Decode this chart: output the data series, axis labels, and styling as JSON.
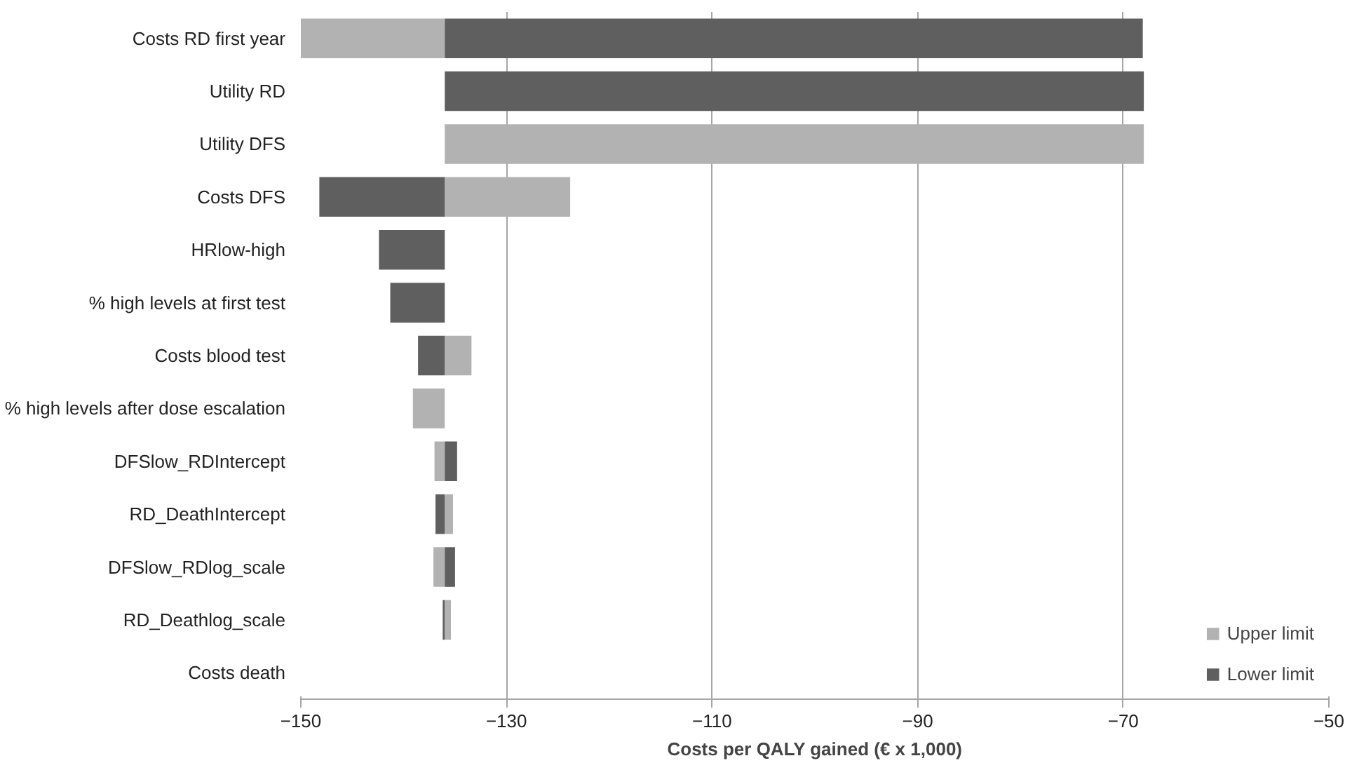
{
  "chart_data": {
    "type": "bar",
    "orientation": "horizontal",
    "categories": [
      "Costs RD first year",
      "Utility RD",
      "Utility DFS",
      "Costs DFS",
      "HRlow-high",
      "% high levels at first test",
      "Costs blood test",
      "% high levels after dose escalation",
      "DFSlow_RDIntercept",
      "RD_DeathIntercept",
      "DFSlow_RDlog_scale",
      "RD_Deathlog_scale",
      "Costs death"
    ],
    "series": [
      {
        "name": "Upper limit",
        "color": "#b2b2b2",
        "base": [
          -136,
          null,
          -136,
          -136,
          null,
          null,
          -136,
          -136,
          -136,
          -136,
          -136,
          -136,
          null
        ],
        "values": [
          -14,
          null,
          68,
          12.2,
          null,
          null,
          2.6,
          -3.1,
          -1.0,
          0.8,
          -1.1,
          0.6,
          null
        ]
      },
      {
        "name": "Lower limit",
        "color": "#5f5f5f",
        "base": [
          -136,
          -136,
          null,
          -136,
          -136,
          -136,
          -136,
          null,
          -136,
          -136,
          -136,
          -136,
          null
        ],
        "values": [
          67.9,
          68,
          null,
          -12.2,
          -6.4,
          -5.3,
          -2.6,
          null,
          1.2,
          -0.9,
          1.0,
          -0.2,
          null
        ]
      }
    ],
    "xlabel": "Costs per QALY gained (€ x 1,000)",
    "xlim": [
      -150,
      -50
    ],
    "xticks": [
      -150,
      -130,
      -110,
      -90,
      -70,
      -50
    ],
    "grid": "x",
    "legend": "bottom right"
  }
}
